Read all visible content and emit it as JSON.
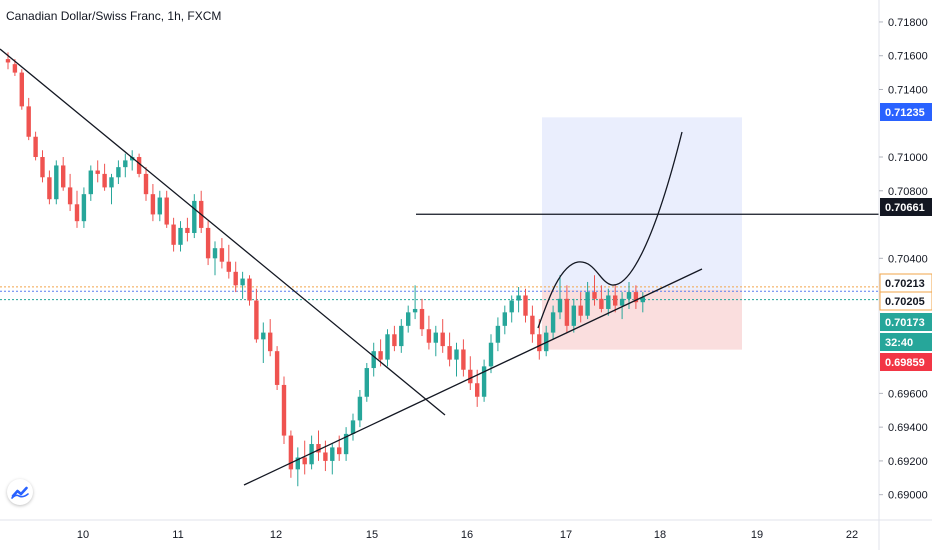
{
  "header": {
    "title": "Canadian Dollar/Swiss Franc, 1h, FXCM"
  },
  "colors": {
    "up": "#26a69a",
    "down": "#ef5350",
    "blue_zone": "#5a7ff0",
    "red_zone": "#f0a0a0",
    "badge_blue": "#2962ff",
    "badge_black": "#131722",
    "badge_teal": "#26a69a",
    "badge_red": "#f23645",
    "logo": "#2962ff"
  },
  "icons": {
    "logo": "tradingview-logo-icon"
  },
  "chart_data": {
    "type": "candlestick",
    "symbol": "Canadian Dollar/Swiss Franc",
    "interval": "1h",
    "source": "FXCM",
    "ylim": [
      0.6885,
      0.7193
    ],
    "y_ticks": [
      "0.71800",
      "0.71600",
      "0.71400",
      "0.71000",
      "0.70800",
      "0.70400",
      "0.69600",
      "0.69400",
      "0.69200",
      "0.69000"
    ],
    "x_ticks": [
      "10",
      "11",
      "12",
      "15",
      "16",
      "17",
      "18",
      "19",
      "22"
    ],
    "price_badges": [
      {
        "label": "0.71235",
        "value": 0.71235,
        "style": "blue"
      },
      {
        "label": "0.70661",
        "value": 0.70661,
        "style": "black"
      },
      {
        "label": "0.70213",
        "value": 0.70213,
        "style": "outline"
      },
      {
        "label": "0.70205",
        "value": 0.70205,
        "style": "outline"
      },
      {
        "label": "0.70173",
        "value": 0.70173,
        "style": "teal"
      },
      {
        "label": "32:40",
        "value": 0.7008,
        "style": "teal"
      },
      {
        "label": "0.69859",
        "value": 0.69859,
        "style": "red"
      }
    ],
    "horizontal_line": 0.70661,
    "target_zone": [
      0.70213,
      0.71235
    ],
    "stop_zone": [
      0.69859,
      0.70213
    ],
    "candles": [
      [
        0.7158,
        0.7162,
        0.7152,
        0.7156
      ],
      [
        0.7155,
        0.7158,
        0.7148,
        0.715
      ],
      [
        0.715,
        0.7152,
        0.7128,
        0.713
      ],
      [
        0.713,
        0.7135,
        0.711,
        0.7112
      ],
      [
        0.7112,
        0.7115,
        0.7098,
        0.71
      ],
      [
        0.71,
        0.7104,
        0.7085,
        0.7088
      ],
      [
        0.7088,
        0.7092,
        0.7072,
        0.7075
      ],
      [
        0.7075,
        0.7098,
        0.7072,
        0.7095
      ],
      [
        0.7095,
        0.71,
        0.708,
        0.7082
      ],
      [
        0.7082,
        0.709,
        0.7068,
        0.7072
      ],
      [
        0.7072,
        0.708,
        0.7058,
        0.7062
      ],
      [
        0.7062,
        0.7082,
        0.7058,
        0.7078
      ],
      [
        0.7078,
        0.7095,
        0.7074,
        0.7092
      ],
      [
        0.7092,
        0.7098,
        0.7085,
        0.709
      ],
      [
        0.709,
        0.7096,
        0.708,
        0.7082
      ],
      [
        0.7082,
        0.709,
        0.7072,
        0.7088
      ],
      [
        0.7088,
        0.7098,
        0.7084,
        0.7094
      ],
      [
        0.7094,
        0.7102,
        0.7088,
        0.7098
      ],
      [
        0.7098,
        0.7104,
        0.7092,
        0.71
      ],
      [
        0.71,
        0.7102,
        0.7088,
        0.709
      ],
      [
        0.709,
        0.7094,
        0.7074,
        0.7078
      ],
      [
        0.7078,
        0.7084,
        0.7062,
        0.7066
      ],
      [
        0.7066,
        0.708,
        0.7062,
        0.7076
      ],
      [
        0.7076,
        0.708,
        0.7058,
        0.706
      ],
      [
        0.706,
        0.7064,
        0.7044,
        0.7048
      ],
      [
        0.7048,
        0.7062,
        0.7044,
        0.7058
      ],
      [
        0.7058,
        0.7064,
        0.705,
        0.7055
      ],
      [
        0.7055,
        0.7078,
        0.7052,
        0.7074
      ],
      [
        0.7074,
        0.708,
        0.7055,
        0.7058
      ],
      [
        0.7058,
        0.7062,
        0.7036,
        0.704
      ],
      [
        0.704,
        0.705,
        0.703,
        0.7046
      ],
      [
        0.7046,
        0.7052,
        0.7034,
        0.7038
      ],
      [
        0.7038,
        0.7048,
        0.7028,
        0.7032
      ],
      [
        0.7032,
        0.7038,
        0.702,
        0.7024
      ],
      [
        0.7024,
        0.7032,
        0.7016,
        0.7028
      ],
      [
        0.7028,
        0.703,
        0.7012,
        0.7015
      ],
      [
        0.7015,
        0.7022,
        0.699,
        0.6992
      ],
      [
        0.6992,
        0.7002,
        0.6978,
        0.6996
      ],
      [
        0.6996,
        0.7004,
        0.6982,
        0.6985
      ],
      [
        0.6985,
        0.6988,
        0.6962,
        0.6965
      ],
      [
        0.6965,
        0.697,
        0.693,
        0.6935
      ],
      [
        0.6935,
        0.6938,
        0.691,
        0.6915
      ],
      [
        0.6915,
        0.6928,
        0.6905,
        0.6922
      ],
      [
        0.6922,
        0.6932,
        0.6912,
        0.6918
      ],
      [
        0.6918,
        0.6935,
        0.6915,
        0.693
      ],
      [
        0.693,
        0.6938,
        0.692,
        0.6925
      ],
      [
        0.6925,
        0.6932,
        0.6914,
        0.692
      ],
      [
        0.692,
        0.693,
        0.6912,
        0.6928
      ],
      [
        0.6928,
        0.6935,
        0.692,
        0.6924
      ],
      [
        0.6924,
        0.694,
        0.692,
        0.6936
      ],
      [
        0.6936,
        0.6948,
        0.6932,
        0.6944
      ],
      [
        0.6944,
        0.6962,
        0.694,
        0.6958
      ],
      [
        0.6958,
        0.6978,
        0.6955,
        0.6975
      ],
      [
        0.6975,
        0.699,
        0.697,
        0.6985
      ],
      [
        0.6985,
        0.6992,
        0.6976,
        0.698
      ],
      [
        0.698,
        0.6998,
        0.6976,
        0.6995
      ],
      [
        0.6995,
        0.7,
        0.6985,
        0.6988
      ],
      [
        0.6988,
        0.7004,
        0.6984,
        0.7
      ],
      [
        0.7,
        0.7012,
        0.6996,
        0.7008
      ],
      [
        0.7008,
        0.7024,
        0.7004,
        0.701
      ],
      [
        0.701,
        0.7016,
        0.6994,
        0.6998
      ],
      [
        0.6998,
        0.7006,
        0.6986,
        0.699
      ],
      [
        0.699,
        0.7,
        0.6982,
        0.6996
      ],
      [
        0.6996,
        0.7004,
        0.6984,
        0.6988
      ],
      [
        0.6988,
        0.6996,
        0.6976,
        0.698
      ],
      [
        0.698,
        0.699,
        0.697,
        0.6986
      ],
      [
        0.6986,
        0.6992,
        0.697,
        0.6974
      ],
      [
        0.6974,
        0.6982,
        0.6962,
        0.6966
      ],
      [
        0.6966,
        0.6974,
        0.6952,
        0.6958
      ],
      [
        0.6958,
        0.698,
        0.6955,
        0.6976
      ],
      [
        0.6976,
        0.6995,
        0.6972,
        0.699
      ],
      [
        0.699,
        0.7005,
        0.6985,
        0.7
      ],
      [
        0.7,
        0.7012,
        0.6995,
        0.7008
      ],
      [
        0.7008,
        0.7018,
        0.7002,
        0.7015
      ],
      [
        0.7015,
        0.7023,
        0.7008,
        0.7018
      ],
      [
        0.7018,
        0.7022,
        0.7002,
        0.7006
      ],
      [
        0.7006,
        0.7012,
        0.699,
        0.6995
      ],
      [
        0.6995,
        0.7004,
        0.698,
        0.6985
      ],
      [
        0.6985,
        0.7,
        0.6982,
        0.6996
      ],
      [
        0.6996,
        0.7012,
        0.6992,
        0.7008
      ],
      [
        0.7008,
        0.703,
        0.7004,
        0.7016
      ],
      [
        0.7016,
        0.7024,
        0.6996,
        0.7
      ],
      [
        0.7,
        0.7016,
        0.6996,
        0.7012
      ],
      [
        0.7012,
        0.702,
        0.7002,
        0.7006
      ],
      [
        0.7006,
        0.7026,
        0.7004,
        0.702
      ],
      [
        0.702,
        0.703,
        0.7012,
        0.7016
      ],
      [
        0.7016,
        0.7024,
        0.7008,
        0.701
      ],
      [
        0.701,
        0.7022,
        0.7006,
        0.7018
      ],
      [
        0.7018,
        0.7024,
        0.7008,
        0.7012
      ],
      [
        0.7012,
        0.702,
        0.7004,
        0.7016
      ],
      [
        0.7016,
        0.7026,
        0.701,
        0.702
      ],
      [
        0.702,
        0.7024,
        0.701,
        0.7014
      ],
      [
        0.7014,
        0.702,
        0.7008,
        0.7017
      ]
    ]
  }
}
